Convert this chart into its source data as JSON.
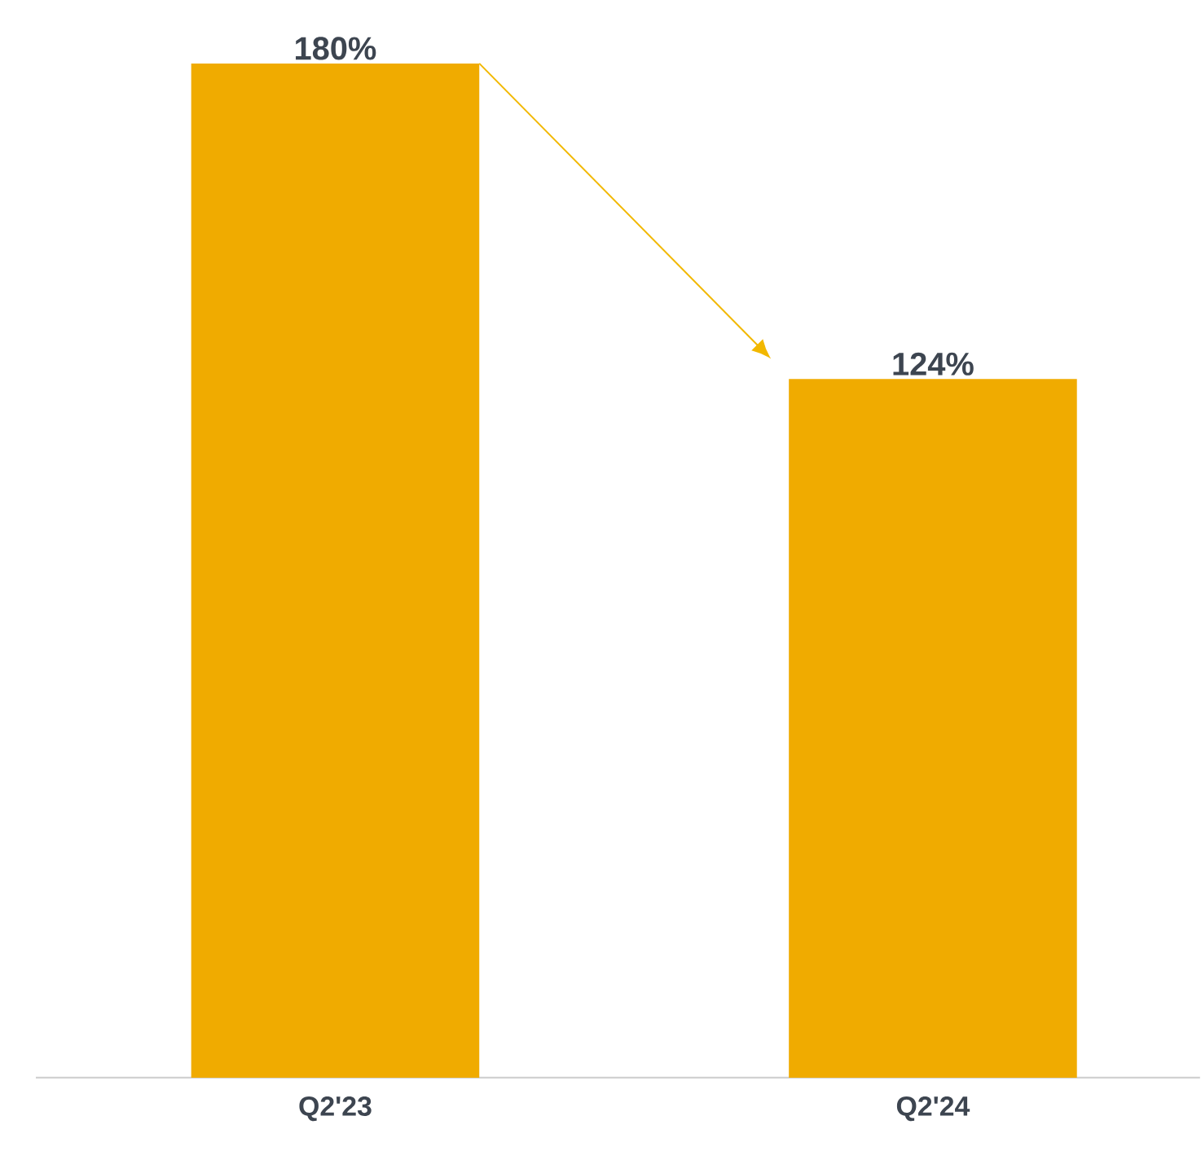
{
  "chart_data": {
    "type": "bar",
    "categories": [
      "Q2'23",
      "Q2'24"
    ],
    "values": [
      180,
      124
    ],
    "color": "#f0ab00",
    "value_labels": [
      "180%",
      "124%"
    ]
  }
}
